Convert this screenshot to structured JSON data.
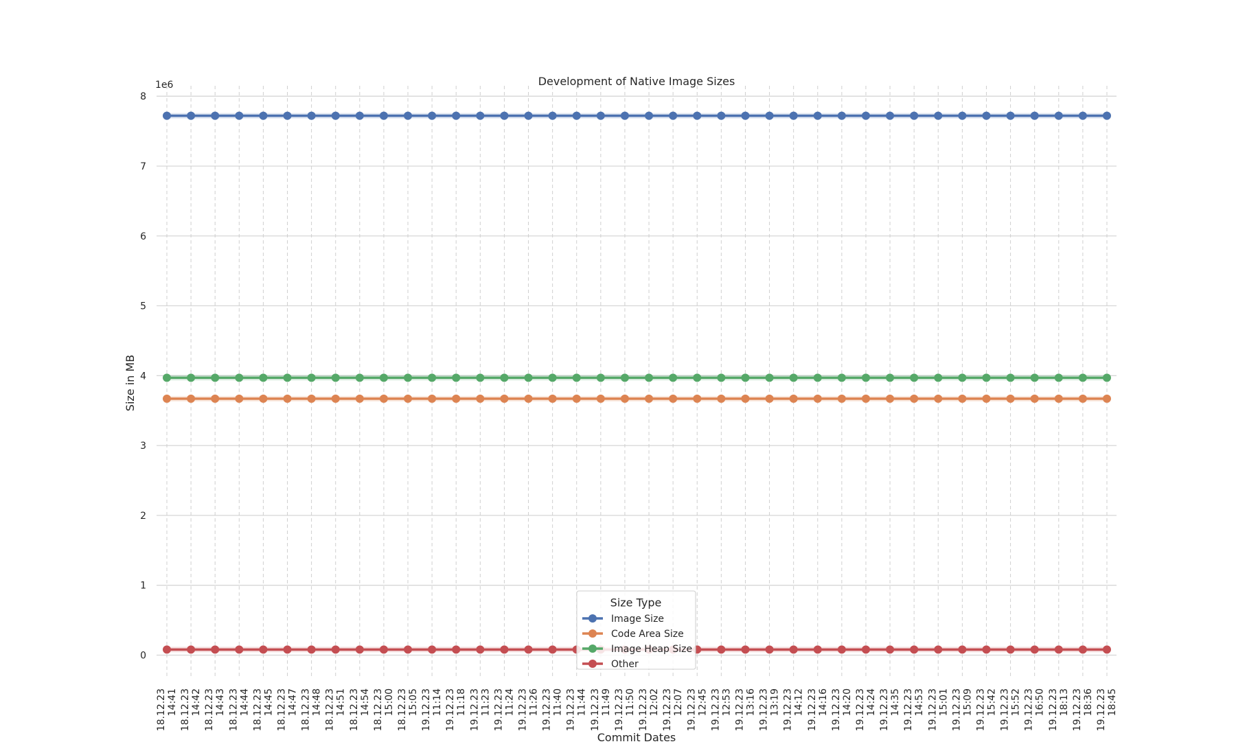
{
  "chart_data": {
    "type": "line",
    "title": "Development of Native Image Sizes",
    "xlabel": "Commit Dates",
    "ylabel": "Size in MB",
    "y_offset_text": "1e6",
    "ylim": [
      -0.3,
      8.1
    ],
    "yticks": [
      0,
      1,
      2,
      3,
      4,
      5,
      6,
      7,
      8
    ],
    "grid": true,
    "legend_title": "Size Type",
    "legend_position": "bottom-center",
    "categories": [
      "18.12.23\n14:41",
      "18.12.23\n14:42",
      "18.12.23\n14:43",
      "18.12.23\n14:44",
      "18.12.23\n14:45",
      "18.12.23\n14:47",
      "18.12.23\n14:48",
      "18.12.23\n14:51",
      "18.12.23\n14:54",
      "18.12.23\n15:00",
      "18.12.23\n15:05",
      "19.12.23\n11:14",
      "19.12.23\n11:18",
      "19.12.23\n11:23",
      "19.12.23\n11:24",
      "19.12.23\n11:26",
      "19.12.23\n11:40",
      "19.12.23\n11:44",
      "19.12.23\n11:49",
      "19.12.23\n11:50",
      "19.12.23\n12:02",
      "19.12.23\n12:07",
      "19.12.23\n12:45",
      "19.12.23\n12:53",
      "19.12.23\n13:16",
      "19.12.23\n13:19",
      "19.12.23\n14:12",
      "19.12.23\n14:16",
      "19.12.23\n14:20",
      "19.12.23\n14:24",
      "19.12.23\n14:35",
      "19.12.23\n14:53",
      "19.12.23\n15:01",
      "19.12.23\n15:09",
      "19.12.23\n15:42",
      "19.12.23\n15:52",
      "19.12.23\n16:50",
      "19.12.23\n18:13",
      "19.12.23\n18:36",
      "19.12.23\n18:45"
    ],
    "series": [
      {
        "name": "Image Size",
        "color": "#4c72b0",
        "value": 7.72
      },
      {
        "name": "Code Area Size",
        "color": "#dd8452",
        "value": 3.67
      },
      {
        "name": "Image Heap Size",
        "color": "#55a868",
        "value": 3.97
      },
      {
        "name": "Other",
        "color": "#c44e52",
        "value": 0.08
      }
    ]
  }
}
